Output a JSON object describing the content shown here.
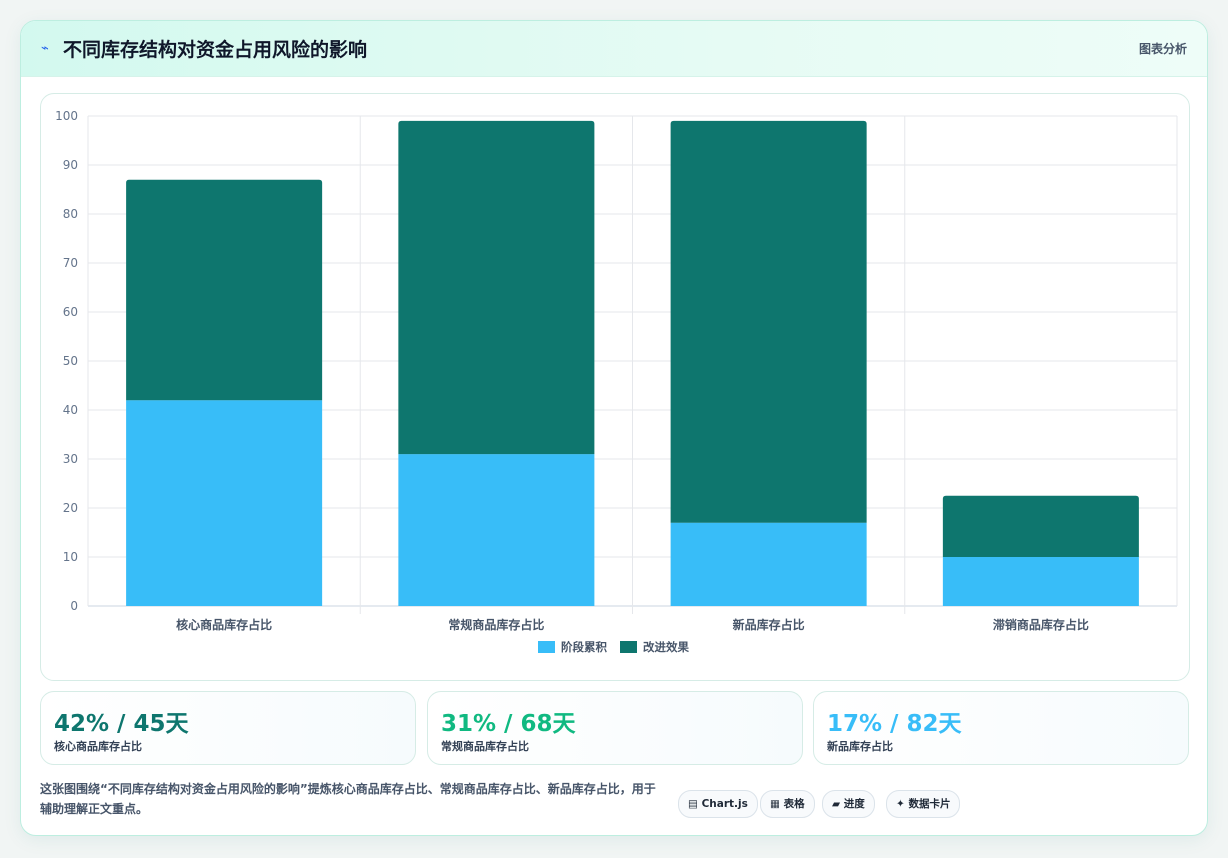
{
  "header": {
    "icon": "lightning-icon",
    "title": "不同库存结构对资金占用风险的影响",
    "tag": "图表分析"
  },
  "chart_data": {
    "type": "bar",
    "stacked": true,
    "categories": [
      "核心商品库存占比",
      "常规商品库存占比",
      "新品库存占比",
      "滞销商品库存占比"
    ],
    "series": [
      {
        "name": "阶段累积",
        "color": "#38bdf8",
        "values": [
          42,
          31,
          17,
          10
        ]
      },
      {
        "name": "改进效果",
        "color": "#0e766e",
        "values": [
          45,
          68,
          82,
          12.5
        ]
      }
    ],
    "ylim": [
      0,
      100
    ],
    "yticks": [
      0,
      10,
      20,
      30,
      40,
      50,
      60,
      70,
      80,
      90,
      100
    ],
    "grid": true,
    "legend": "bottom"
  },
  "stats": [
    {
      "value": "42% / 45天",
      "label": "核心商品库存占比",
      "color": "#0e766e"
    },
    {
      "value": "31% / 68天",
      "label": "常规商品库存占比",
      "color": "#10b981"
    },
    {
      "value": "17% / 82天",
      "label": "新品库存占比",
      "color": "#38bdf8"
    }
  ],
  "note": "这张图围绕“不同库存结构对资金占用风险的影响”提炼核心商品库存占比、常规商品库存占比、新品库存占比，用于辅助理解正文重点。",
  "chips": [
    {
      "icon": "▤",
      "label": "Chart.js"
    },
    {
      "icon": "▦",
      "label": "表格"
    },
    {
      "icon": "▰",
      "label": "进度"
    },
    {
      "icon": "✦",
      "label": "数据卡片"
    }
  ]
}
